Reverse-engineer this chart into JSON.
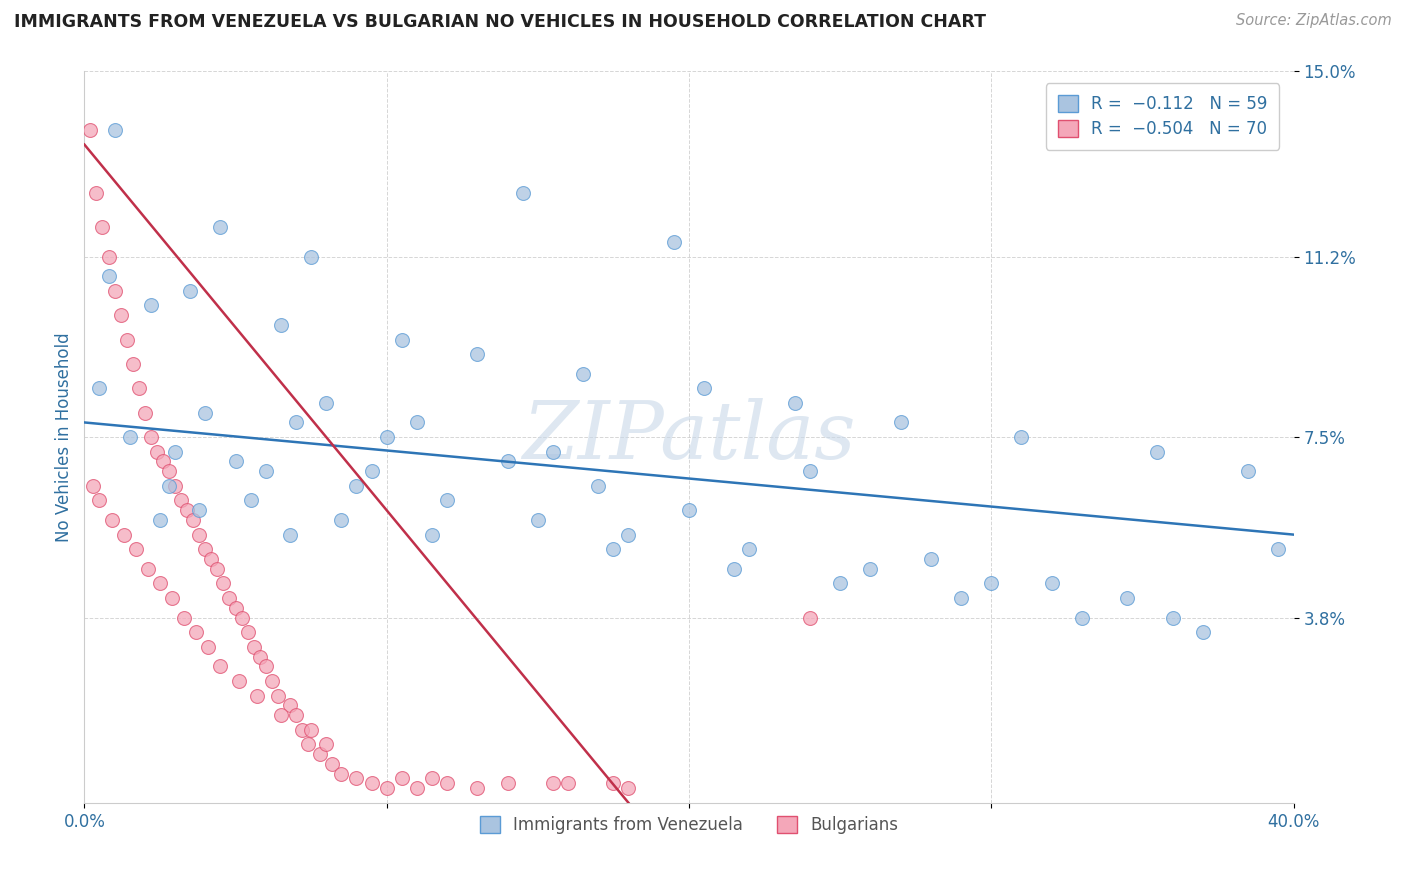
{
  "title": "IMMIGRANTS FROM VENEZUELA VS BULGARIAN NO VEHICLES IN HOUSEHOLD CORRELATION CHART",
  "source_text": "Source: ZipAtlas.com",
  "ylabel": "No Vehicles in Household",
  "xlim": [
    0.0,
    40.0
  ],
  "ylim": [
    0.0,
    15.0
  ],
  "xtick_positions": [
    0.0,
    10.0,
    20.0,
    30.0,
    40.0
  ],
  "xticklabels": [
    "0.0%",
    "",
    "",
    "",
    "40.0%"
  ],
  "ytick_positions": [
    3.8,
    7.5,
    11.2,
    15.0
  ],
  "ytick_labels": [
    "3.8%",
    "7.5%",
    "11.2%",
    "15.0%"
  ],
  "series1_color": "#aac4e0",
  "series1_edgecolor": "#5b9bd5",
  "series2_color": "#f4a7b9",
  "series2_edgecolor": "#e05070",
  "line1_color": "#2e75b6",
  "line2_color": "#c0304a",
  "watermark": "ZIPatlas",
  "watermark_color_zip": "#c8d4e0",
  "watermark_color_atlas": "#a0b8d0",
  "grid_color": "#cccccc",
  "title_color": "#222222",
  "axis_label_color": "#3070a0",
  "tick_label_color": "#3070a0",
  "line1_x0": 0.0,
  "line1_y0": 7.8,
  "line1_x1": 40.0,
  "line1_y1": 5.5,
  "line2_x0": 0.0,
  "line2_y0": 13.5,
  "line2_x1": 18.0,
  "line2_y1": 0.0,
  "series1_x": [
    1.0,
    14.5,
    4.5,
    19.5,
    7.5,
    0.8,
    3.5,
    2.2,
    6.5,
    10.5,
    13.0,
    16.5,
    20.5,
    23.5,
    27.0,
    31.0,
    35.5,
    38.5,
    2.8,
    5.5,
    8.5,
    11.5,
    17.5,
    21.5,
    25.0,
    29.0,
    33.0,
    37.0,
    1.5,
    3.0,
    6.0,
    9.0,
    12.0,
    15.0,
    18.0,
    22.0,
    26.0,
    30.0,
    34.5,
    0.5,
    4.0,
    7.0,
    24.0,
    28.0,
    32.0,
    36.0,
    39.5,
    5.0,
    10.0,
    20.0,
    15.5,
    8.0,
    11.0,
    14.0,
    17.0,
    3.8,
    6.8,
    9.5,
    2.5
  ],
  "series1_y": [
    13.8,
    12.5,
    11.8,
    11.5,
    11.2,
    10.8,
    10.5,
    10.2,
    9.8,
    9.5,
    9.2,
    8.8,
    8.5,
    8.2,
    7.8,
    7.5,
    7.2,
    6.8,
    6.5,
    6.2,
    5.8,
    5.5,
    5.2,
    4.8,
    4.5,
    4.2,
    3.8,
    3.5,
    7.5,
    7.2,
    6.8,
    6.5,
    6.2,
    5.8,
    5.5,
    5.2,
    4.8,
    4.5,
    4.2,
    8.5,
    8.0,
    7.8,
    6.8,
    5.0,
    4.5,
    3.8,
    5.2,
    7.0,
    7.5,
    6.0,
    7.2,
    8.2,
    7.8,
    7.0,
    6.5,
    6.0,
    5.5,
    6.8,
    5.8
  ],
  "series2_x": [
    0.2,
    0.4,
    0.6,
    0.8,
    1.0,
    1.2,
    1.4,
    1.6,
    1.8,
    2.0,
    2.2,
    2.4,
    2.6,
    2.8,
    3.0,
    3.2,
    3.4,
    3.6,
    3.8,
    4.0,
    4.2,
    4.4,
    4.6,
    4.8,
    5.0,
    5.2,
    5.4,
    5.6,
    5.8,
    6.0,
    6.2,
    6.4,
    6.8,
    7.0,
    7.2,
    7.4,
    7.8,
    8.2,
    8.5,
    9.0,
    9.5,
    10.0,
    10.5,
    11.0,
    12.0,
    13.0,
    14.0,
    15.5,
    17.5,
    0.3,
    0.5,
    0.9,
    1.3,
    1.7,
    2.1,
    2.5,
    2.9,
    3.3,
    3.7,
    4.1,
    4.5,
    5.1,
    5.7,
    6.5,
    7.5,
    8.0,
    11.5,
    16.0,
    18.0,
    24.0
  ],
  "series2_y": [
    13.8,
    12.5,
    11.8,
    11.2,
    10.5,
    10.0,
    9.5,
    9.0,
    8.5,
    8.0,
    7.5,
    7.2,
    7.0,
    6.8,
    6.5,
    6.2,
    6.0,
    5.8,
    5.5,
    5.2,
    5.0,
    4.8,
    4.5,
    4.2,
    4.0,
    3.8,
    3.5,
    3.2,
    3.0,
    2.8,
    2.5,
    2.2,
    2.0,
    1.8,
    1.5,
    1.2,
    1.0,
    0.8,
    0.6,
    0.5,
    0.4,
    0.3,
    0.5,
    0.3,
    0.4,
    0.3,
    0.4,
    0.4,
    0.4,
    6.5,
    6.2,
    5.8,
    5.5,
    5.2,
    4.8,
    4.5,
    4.2,
    3.8,
    3.5,
    3.2,
    2.8,
    2.5,
    2.2,
    1.8,
    1.5,
    1.2,
    0.5,
    0.4,
    0.3,
    3.8
  ]
}
